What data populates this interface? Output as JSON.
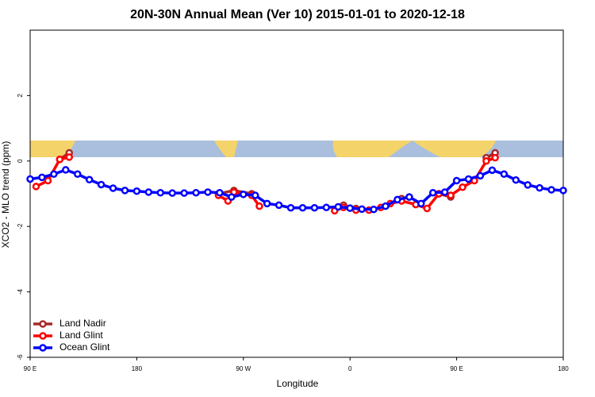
{
  "chart_data": {
    "type": "line",
    "title": "20N-30N Annual Mean (Ver 10)   2015-01-01 to 2020-12-18",
    "x_label": "Longitude",
    "y_label": "XCO2 - MLO trend (ppm)",
    "xlim": [
      90,
      540
    ],
    "xticks": [
      {
        "value": 90,
        "label": "90 E"
      },
      180,
      {
        "value": 270,
        "label": "90 W"
      },
      {
        "value": 360,
        "label": "0"
      },
      {
        "value": 450,
        "label": "90 E"
      },
      {
        "value": 540,
        "label": "180"
      }
    ],
    "ylim": [
      -6,
      4
    ],
    "yticks": [
      -6,
      -4,
      -2,
      0,
      2
    ],
    "legend": "bottom-left",
    "series": [
      {
        "name": "Land Nadir",
        "color": "#a52a2a",
        "x": [
          115,
          123,
          185,
          249,
          262,
          277,
          320,
          354.5,
          365,
          380,
          403.5,
          410,
          420,
          435,
          445,
          460,
          475,
          482.5
        ],
        "values": [
          0.05,
          0.25,
          null,
          -1.0,
          -0.9,
          -1.0,
          null,
          -1.35,
          -1.45,
          null,
          -1.15,
          -1.1,
          null,
          -1.0,
          -1.1,
          null,
          0.1,
          0.25
        ]
      },
      {
        "name": "Land Glint",
        "color": "#ff0000",
        "x": [
          95,
          105,
          115,
          123,
          185,
          249,
          257,
          262,
          277,
          283.5,
          320,
          347,
          354.5,
          365,
          376,
          386,
          394,
          403.5,
          415.5,
          425,
          435,
          445,
          455,
          465,
          475,
          482.5
        ],
        "values": [
          -0.78,
          -0.6,
          0.05,
          0.12,
          null,
          -1.05,
          -1.22,
          -0.95,
          -1.05,
          -1.38,
          null,
          -1.52,
          -1.42,
          -1.5,
          -1.5,
          -1.42,
          -1.3,
          -1.22,
          -1.33,
          -1.45,
          -1.0,
          -1.05,
          -0.8,
          -0.6,
          0.0,
          0.1
        ]
      },
      {
        "name": "Ocean Glint",
        "color": "#0000ff",
        "x": [
          90,
          100,
          110,
          120,
          130,
          140,
          150,
          160,
          170,
          180,
          190,
          200,
          210,
          220,
          230,
          240,
          250,
          260,
          270,
          280,
          290,
          300,
          310,
          320,
          330,
          340,
          350,
          360,
          370,
          380,
          390,
          400,
          410,
          420,
          430,
          440,
          450,
          460,
          470,
          480,
          490,
          500,
          510,
          520,
          530,
          540
        ],
        "values": [
          -0.55,
          -0.5,
          -0.4,
          -0.27,
          -0.4,
          -0.57,
          -0.72,
          -0.83,
          -0.9,
          -0.92,
          -0.95,
          -0.97,
          -0.98,
          -0.98,
          -0.97,
          -0.95,
          -0.97,
          -1.1,
          -1.02,
          -1.05,
          -1.3,
          -1.35,
          -1.43,
          -1.43,
          -1.43,
          -1.42,
          -1.4,
          -1.44,
          -1.47,
          -1.48,
          -1.38,
          -1.18,
          -1.1,
          -1.3,
          -0.97,
          -0.95,
          -0.6,
          -0.55,
          -0.45,
          -0.28,
          -0.4,
          -0.58,
          -0.73,
          -0.82,
          -0.88,
          -0.9
        ]
      }
    ]
  }
}
